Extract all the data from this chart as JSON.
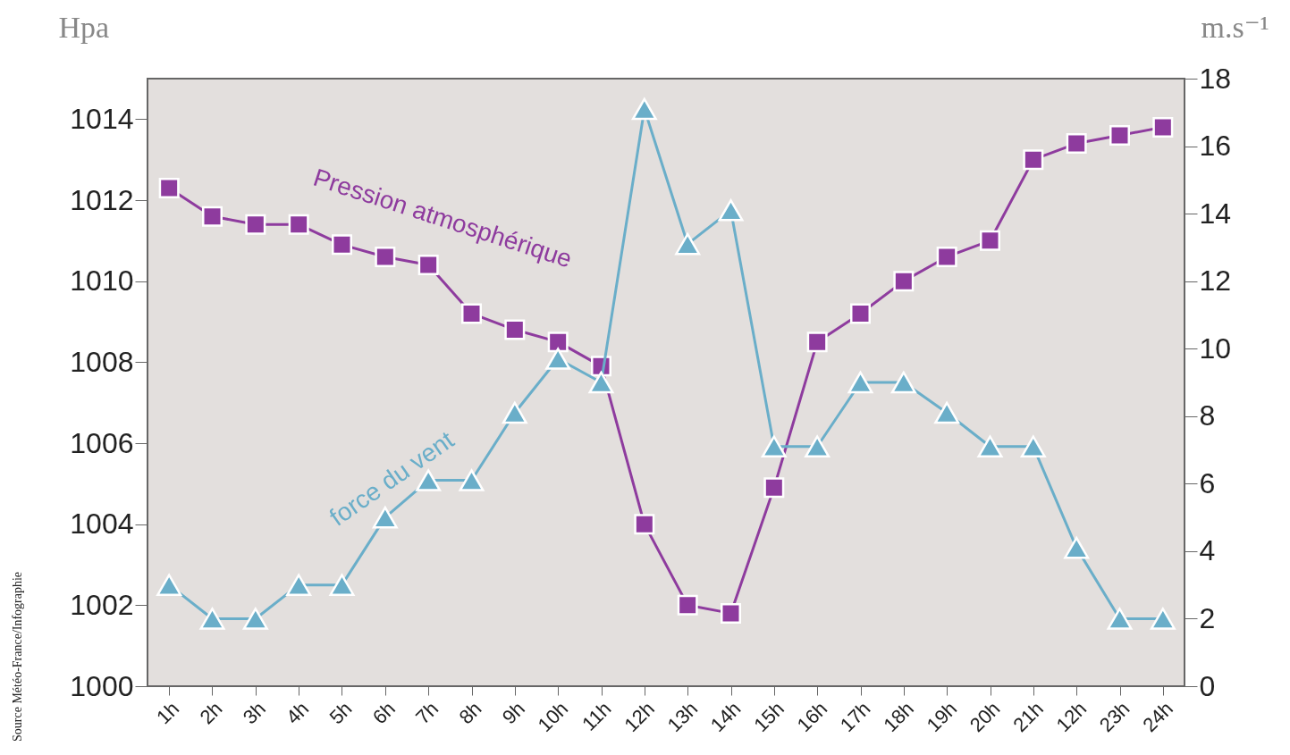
{
  "chart_data": {
    "type": "line",
    "ylabel": "Hpa",
    "y2label": "m.s⁻¹",
    "categories": [
      "1h",
      "2h",
      "3h",
      "4h",
      "5h",
      "6h",
      "7h",
      "8h",
      "9h",
      "10h",
      "11h",
      "12h",
      "13h",
      "14h",
      "15h",
      "16h",
      "17h",
      "18h",
      "19h",
      "20h",
      "21h",
      "12h",
      "23h",
      "24h"
    ],
    "series": [
      {
        "name": "Pression atmosphérique",
        "color": "#8e3b9e",
        "marker": "square",
        "values": [
          1012.3,
          1011.6,
          1011.4,
          1011.4,
          1010.9,
          1010.6,
          1010.4,
          1009.2,
          1008.8,
          1008.5,
          1007.9,
          1004.0,
          1002.0,
          1001.8,
          1004.9,
          1008.5,
          1009.2,
          1010.0,
          1010.6,
          1011.0,
          1013.0,
          1013.4,
          1013.6,
          1013.8
        ]
      },
      {
        "name": "force du vent",
        "color": "#6aaec9",
        "marker": "triangle",
        "axis": "y2",
        "values": [
          3.0,
          2.0,
          2.0,
          3.0,
          3.0,
          5.0,
          6.1,
          6.1,
          8.1,
          9.7,
          9.0,
          17.1,
          13.1,
          14.1,
          7.1,
          7.1,
          9.0,
          9.0,
          8.1,
          7.1,
          7.1,
          4.1,
          2.0,
          2.0
        ]
      }
    ],
    "ylim": [
      1000,
      1015
    ],
    "yticks": [
      1000,
      1002,
      1004,
      1006,
      1008,
      1010,
      1012,
      1014
    ],
    "y2lim": [
      0,
      18
    ],
    "y2ticks": [
      0,
      2,
      4,
      6,
      8,
      10,
      12,
      14,
      16,
      18
    ],
    "annotations": [
      "Source Météo-France/Infographie"
    ]
  }
}
